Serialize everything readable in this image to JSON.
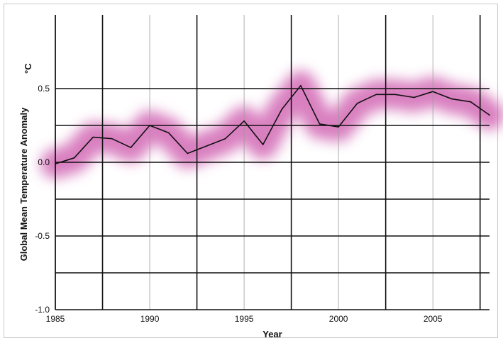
{
  "chart_data": {
    "type": "line",
    "xlabel": "Year",
    "ylabel": "Global Mean Temperature Anomaly",
    "unit": "°C",
    "xlim": [
      1985,
      2008
    ],
    "ylim": [
      -1.0,
      1.0
    ],
    "x_ticks": [
      {
        "value": 1985,
        "label": "1985"
      },
      {
        "value": 1990,
        "label": "1990"
      },
      {
        "value": 1995,
        "label": "1995"
      },
      {
        "value": 2000,
        "label": "2000"
      },
      {
        "value": 2005,
        "label": "2005"
      }
    ],
    "y_ticks": [
      {
        "value": 0.5,
        "label": "0.5"
      },
      {
        "value": 0.0,
        "label": "0.0"
      },
      {
        "value": -0.5,
        "label": "-0.5"
      },
      {
        "value": -1.0,
        "label": "-1.0"
      }
    ],
    "series": [
      {
        "x": [
          1985,
          1986,
          1987,
          1988,
          1989,
          1990,
          1991,
          1992,
          1993,
          1994,
          1995,
          1996,
          1997,
          1998,
          1999,
          2000,
          2001,
          2002,
          2003,
          2004,
          2005,
          2006,
          2007,
          2008
        ],
        "y": [
          -0.01,
          0.03,
          0.17,
          0.16,
          0.1,
          0.25,
          0.2,
          0.06,
          0.11,
          0.16,
          0.28,
          0.12,
          0.36,
          0.52,
          0.26,
          0.24,
          0.4,
          0.46,
          0.46,
          0.44,
          0.48,
          0.43,
          0.41,
          0.32
        ],
        "color": "#111111"
      }
    ],
    "uncertainty_band_color": "#cc55aa",
    "grid": true,
    "legend": "none"
  }
}
